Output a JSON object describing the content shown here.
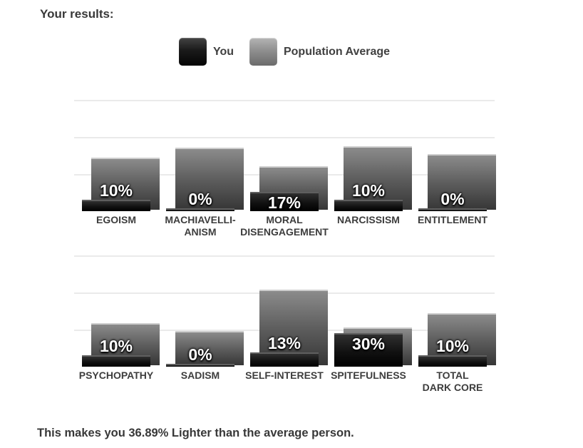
{
  "page": {
    "title": "Your results:",
    "summary": "This makes you 36.89% Lighter than the average person."
  },
  "legend": {
    "you_label": "You",
    "avg_label": "Population Average"
  },
  "colors": {
    "you_bar_top": "#303030",
    "you_bar_bottom": "#000000",
    "avg_bar_top": "#8b8b8b",
    "avg_bar_bottom": "#363636",
    "gridline": "#eaeaea",
    "text": "#3d3d3d",
    "value_label_text": "#ffffff"
  },
  "chart_data": {
    "type": "bar",
    "title": "Your results:",
    "unit": "%",
    "ylim": [
      0,
      100
    ],
    "gridlines_pct": [
      33.33,
      66.67,
      100
    ],
    "grid": true,
    "legend_position": "top-center",
    "layout": {
      "rows_of": 5,
      "value_labels_on": "You"
    },
    "categories": [
      "EGOISM",
      "MACHIAVELLIANISM",
      "MORAL DISENGAGEMENT",
      "NARCISSISM",
      "ENTITLEMENT",
      "PSYCHOPATHY",
      "SADISM",
      "SELF-INTEREST",
      "SPITEFULNESS",
      "TOTAL DARK CORE"
    ],
    "category_label_lines": [
      [
        "EGOISM"
      ],
      [
        "MACHIAVELLI-",
        "ANISM"
      ],
      [
        "MORAL",
        "DISENGAGEMENT"
      ],
      [
        "NARCISSISM"
      ],
      [
        "ENTITLEMENT"
      ],
      [
        "PSYCHOPATHY"
      ],
      [
        "SADISM"
      ],
      [
        "SELF-INTEREST"
      ],
      [
        "SPITEFULNESS"
      ],
      [
        "TOTAL",
        "DARK CORE"
      ]
    ],
    "series": [
      {
        "name": "You",
        "values": [
          10,
          0,
          17,
          10,
          0,
          10,
          0,
          13,
          30,
          10
        ],
        "labels": [
          "10%",
          "0%",
          "17%",
          "10%",
          "0%",
          "10%",
          "0%",
          "13%",
          "30%",
          "10%"
        ]
      },
      {
        "name": "Population Average",
        "values": [
          47,
          56,
          39,
          57,
          50,
          38,
          31,
          68,
          34,
          47
        ]
      }
    ],
    "annotation": "This makes you 36.89% Lighter than the average person."
  }
}
